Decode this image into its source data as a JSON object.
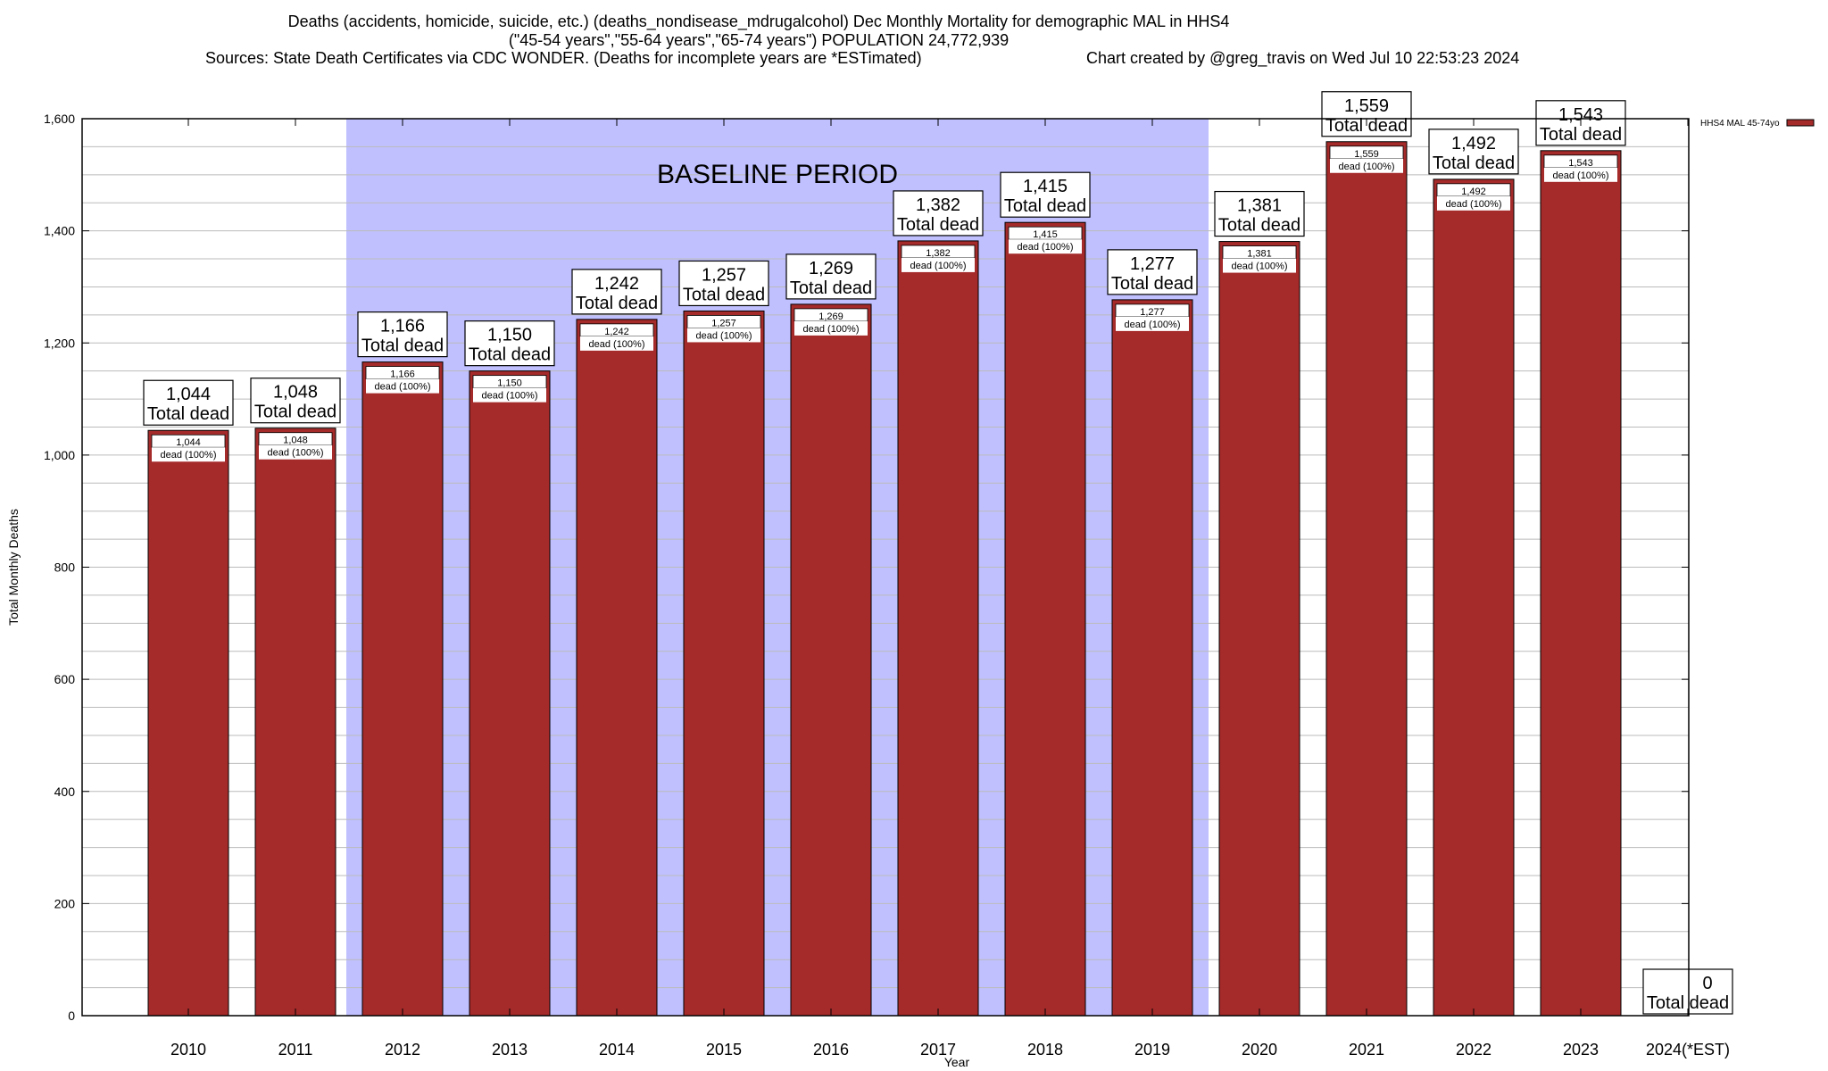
{
  "chart_data": {
    "type": "bar",
    "title": "Deaths (accidents, homicide, suicide, etc.) (deaths_nondisease_mdrugalcohol) Dec Monthly Mortality for demographic MAL in HHS4",
    "subtitle": "(\"45-54 years\",\"55-64 years\",\"65-74 years\") POPULATION 24,772,939",
    "sources": "Sources: State Death Certificates via CDC WONDER. (Deaths for incomplete years are *ESTimated)",
    "credit": "Chart created by @greg_travis on Wed Jul 10 22:53:23 2024",
    "xlabel": "Year",
    "ylabel": "Total Monthly Deaths",
    "ylim": [
      0,
      1600
    ],
    "yticks": [
      0,
      200,
      400,
      600,
      800,
      1000,
      1200,
      1400,
      1600
    ],
    "ytick_labels": [
      "0",
      "200",
      "400",
      "600",
      "800",
      "1,000",
      "1,200",
      "1,400",
      "1,600"
    ],
    "categories": [
      "2010",
      "2011",
      "2012",
      "2013",
      "2014",
      "2015",
      "2016",
      "2017",
      "2018",
      "2019",
      "2020",
      "2021",
      "2022",
      "2023",
      "2024(*EST)"
    ],
    "series": [
      {
        "name": "HHS4 MAL 45-74yo",
        "color": "#a52a2a",
        "values": [
          1044,
          1048,
          1166,
          1150,
          1242,
          1257,
          1269,
          1382,
          1415,
          1277,
          1381,
          1559,
          1492,
          1543,
          0
        ]
      }
    ],
    "value_labels": [
      "1,044",
      "1,048",
      "1,166",
      "1,150",
      "1,242",
      "1,257",
      "1,269",
      "1,382",
      "1,415",
      "1,277",
      "1,381",
      "1,559",
      "1,492",
      "1,543",
      "0"
    ],
    "total_label": "Total dead",
    "inner_label": "dead (100%)",
    "annotation": {
      "text": "BASELINE PERIOD",
      "from": "2012",
      "to": "2019",
      "color": "#c0c0ff"
    },
    "grid": true,
    "legend": "top-right"
  }
}
